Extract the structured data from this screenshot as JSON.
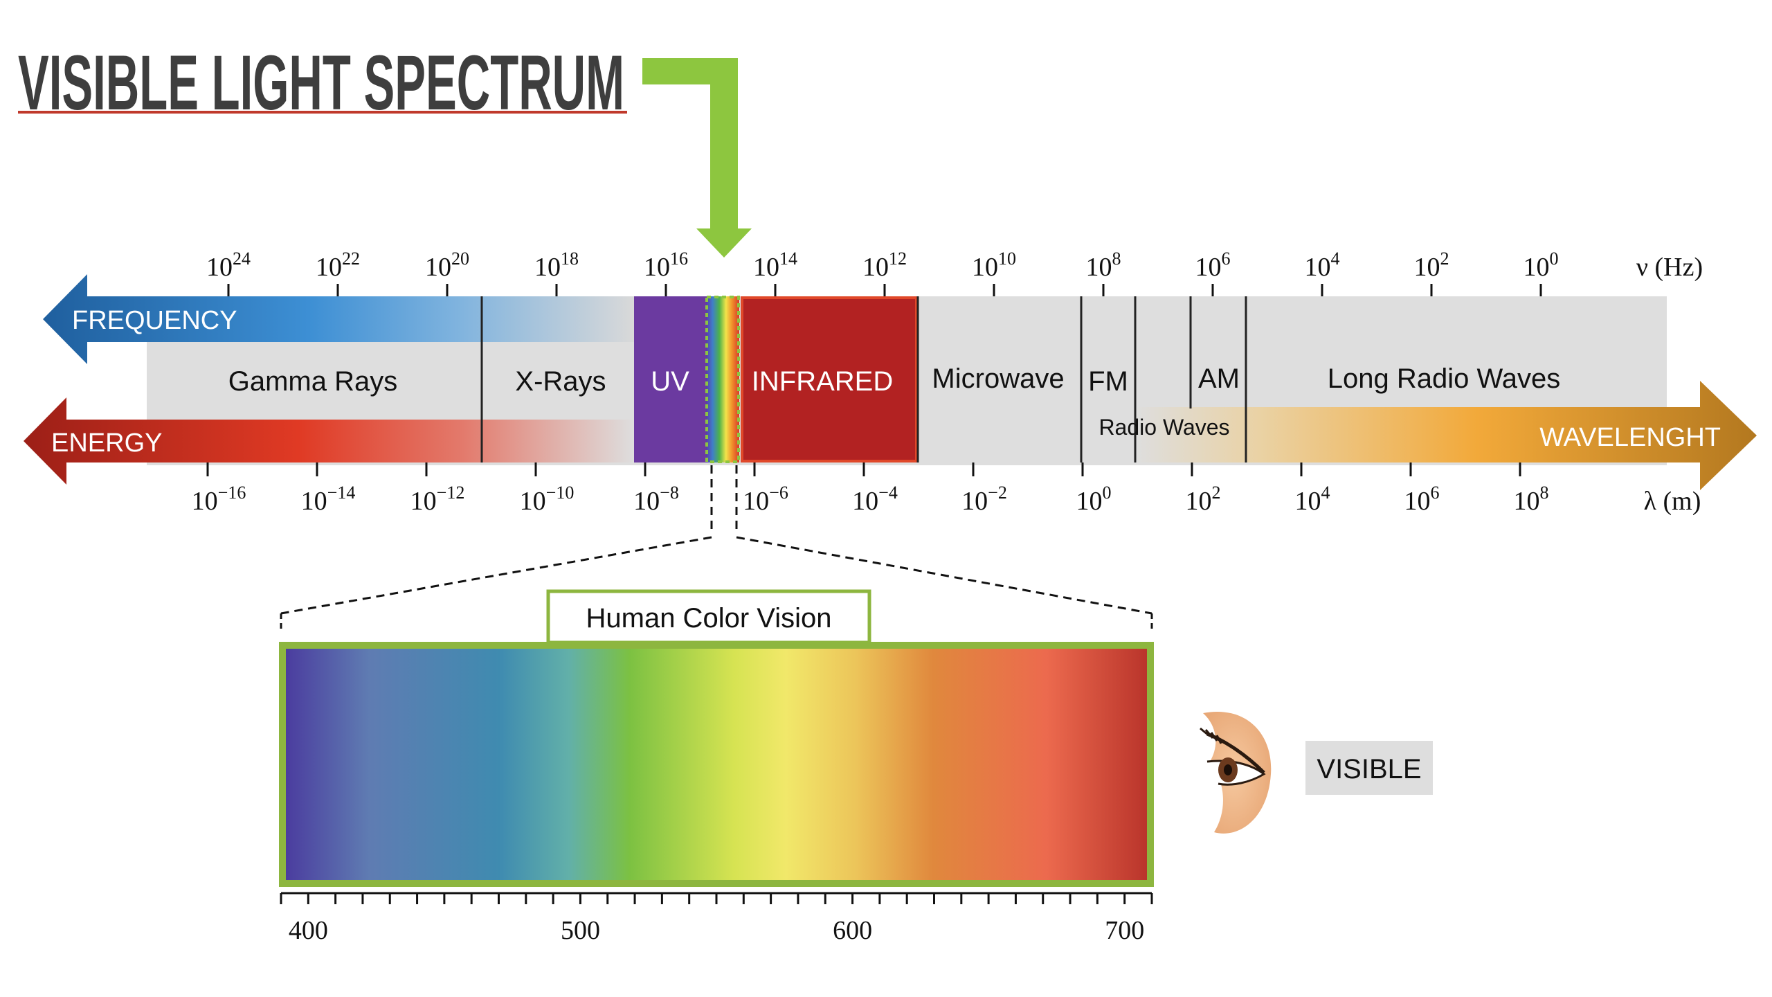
{
  "title": "VISIBLE LIGHT SPECTRUM",
  "colors": {
    "title_text": "#3e3e3e",
    "title_underline": "#c0392b",
    "pointer_arrow": "#8dc63f",
    "band_gray": "#dedede",
    "uv": "#6b3aa0",
    "infrared": "#b22222",
    "frequency_arrow": "#2e6fb0",
    "energy_arrow": "#a4241c",
    "wavelength_arrow": "#b5791f",
    "vision_frame": "#8db63f"
  },
  "frequency_axis": {
    "unit_label": "ν (Hz)",
    "ticks": [
      {
        "base": "10",
        "exp": "24"
      },
      {
        "base": "10",
        "exp": "22"
      },
      {
        "base": "10",
        "exp": "20"
      },
      {
        "base": "10",
        "exp": "18"
      },
      {
        "base": "10",
        "exp": "16"
      },
      {
        "base": "10",
        "exp": "14"
      },
      {
        "base": "10",
        "exp": "12"
      },
      {
        "base": "10",
        "exp": "10"
      },
      {
        "base": "10",
        "exp": "8"
      },
      {
        "base": "10",
        "exp": "6"
      },
      {
        "base": "10",
        "exp": "4"
      },
      {
        "base": "10",
        "exp": "2"
      },
      {
        "base": "10",
        "exp": "0"
      }
    ]
  },
  "wavelength_axis": {
    "unit_label": "λ (m)",
    "ticks": [
      {
        "base": "10",
        "exp": "−16"
      },
      {
        "base": "10",
        "exp": "−14"
      },
      {
        "base": "10",
        "exp": "−12"
      },
      {
        "base": "10",
        "exp": "−10"
      },
      {
        "base": "10",
        "exp": "−8"
      },
      {
        "base": "10",
        "exp": "−6"
      },
      {
        "base": "10",
        "exp": "−4"
      },
      {
        "base": "10",
        "exp": "−2"
      },
      {
        "base": "10",
        "exp": "0"
      },
      {
        "base": "10",
        "exp": "2"
      },
      {
        "base": "10",
        "exp": "4"
      },
      {
        "base": "10",
        "exp": "6"
      },
      {
        "base": "10",
        "exp": "8"
      }
    ]
  },
  "arrows": {
    "frequency": "FREQUENCY",
    "energy": "ENERGY",
    "wavelength": "WAVELENGHT"
  },
  "bands": {
    "gamma": "Gamma Rays",
    "xray": "X-Rays",
    "uv": "UV",
    "infrared": "INFRARED",
    "microwave": "Microwave",
    "fm": "FM",
    "am": "AM",
    "radio": "Radio Waves",
    "long_radio": "Long Radio Waves"
  },
  "vision": {
    "label": "Human Color Vision",
    "ticks": [
      {
        "value": 400,
        "label": "400"
      },
      {
        "value": 500,
        "label": "500"
      },
      {
        "value": 600,
        "label": "600"
      },
      {
        "value": 700,
        "label": "700"
      }
    ],
    "range": [
      390,
      710
    ]
  },
  "visible_badge": "VISIBLE",
  "eye_icon": "eye-icon"
}
